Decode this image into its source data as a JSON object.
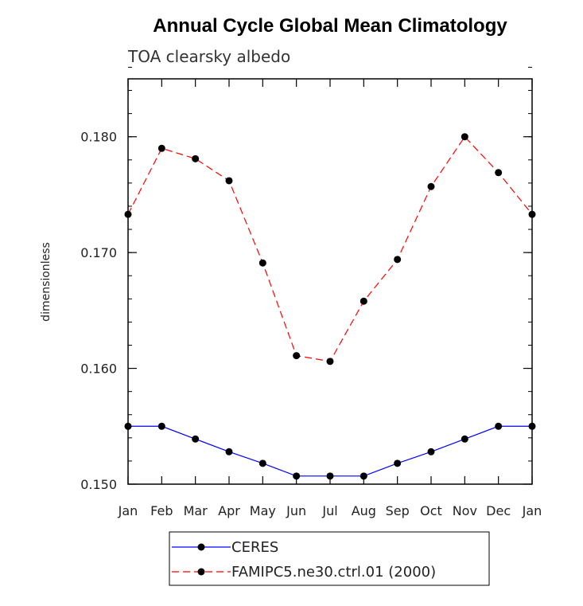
{
  "chart_data": {
    "type": "line",
    "title": "Annual Cycle Global Mean Climatology",
    "subtitle": "TOA clearsky albedo",
    "xlabel": "",
    "ylabel": "dimensionless",
    "categories": [
      "Jan",
      "Feb",
      "Mar",
      "Apr",
      "May",
      "Jun",
      "Jul",
      "Aug",
      "Sep",
      "Oct",
      "Nov",
      "Dec",
      "Jan"
    ],
    "ylim": [
      0.15,
      0.185
    ],
    "yticks": [
      0.15,
      0.16,
      0.17,
      0.18
    ],
    "ytick_labels": [
      "0.150",
      "0.160",
      "0.170",
      "0.180"
    ],
    "y_minor_step": 0.002,
    "series": [
      {
        "name": "CERES",
        "color": "#0000ff",
        "style": "solid",
        "values": [
          0.155,
          0.155,
          0.1539,
          0.1528,
          0.1518,
          0.1507,
          0.1507,
          0.1507,
          0.1518,
          0.1528,
          0.1539,
          0.155,
          0.155
        ]
      },
      {
        "name": "FAMIPC5.ne30.ctrl.01 (2000)",
        "color": "#ff0000",
        "style": "dashed",
        "values": [
          0.1733,
          0.179,
          0.1781,
          0.1762,
          0.1691,
          0.1611,
          0.1606,
          0.1658,
          0.1694,
          0.1757,
          0.18,
          0.1769,
          0.1733
        ]
      }
    ],
    "grid": false,
    "legend_position": "bottom"
  }
}
